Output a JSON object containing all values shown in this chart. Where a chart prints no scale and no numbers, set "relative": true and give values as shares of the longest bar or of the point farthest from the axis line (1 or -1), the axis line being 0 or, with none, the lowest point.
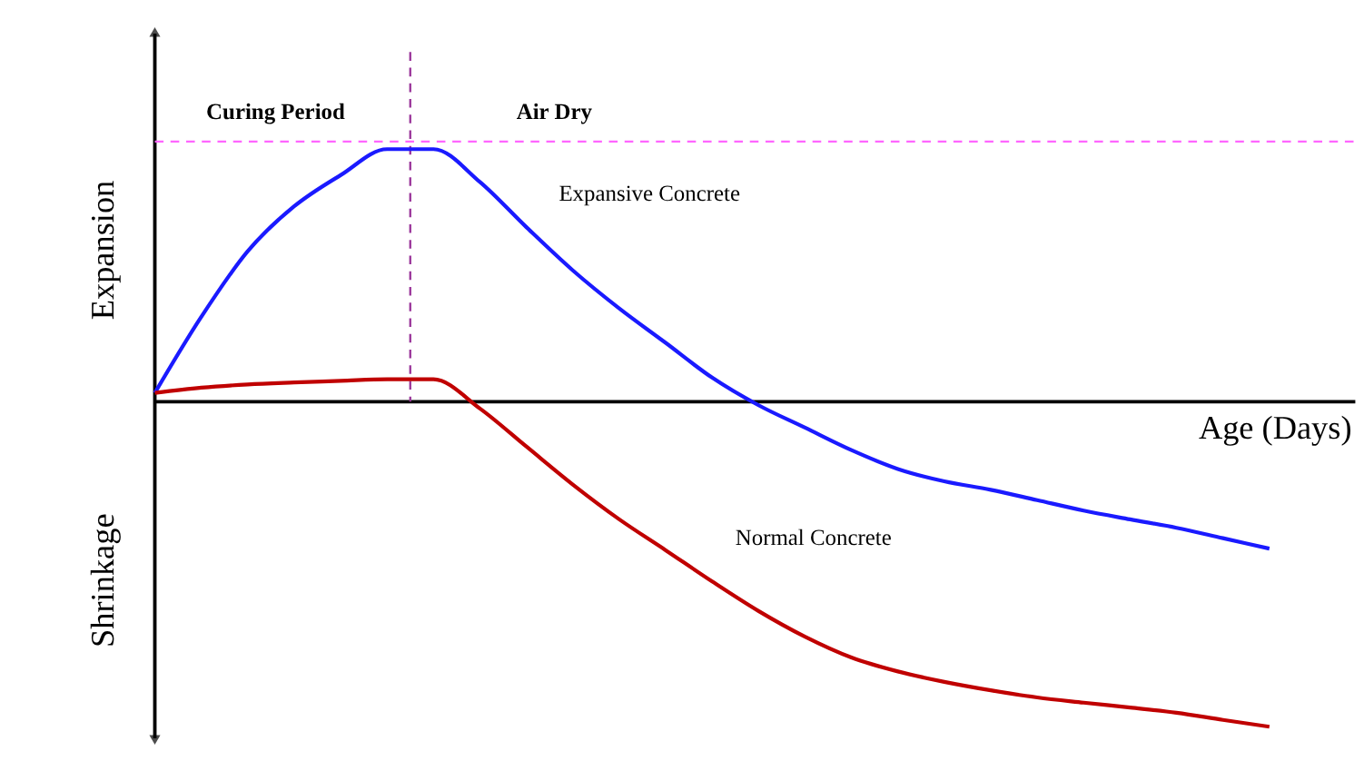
{
  "chart_data": {
    "type": "line",
    "relative": true,
    "xlabel": "Age (Days)",
    "ylabel": "Expansion",
    "annotations": [
      "Curing Period",
      "Air Dry",
      "Shrinkage"
    ],
    "categories": [
      null,
      null,
      null,
      null,
      null,
      null,
      null,
      null,
      null,
      null,
      null,
      null,
      null,
      null,
      null,
      null,
      null,
      null,
      null,
      null,
      null,
      null,
      null,
      null,
      null,
      null
    ],
    "series": [
      {
        "name": "Expansive Concrete",
        "color": "#1a1aff",
        "values": [
          0.027,
          0.261,
          0.463,
          0.601,
          0.697,
          0.777,
          0.777,
          0.676,
          0.537,
          0.404,
          0.287,
          0.181,
          0.074,
          -0.011,
          -0.08,
          -0.149,
          -0.207,
          -0.245,
          -0.271,
          -0.303,
          -0.335,
          -0.362,
          -0.388,
          -0.42,
          -0.452,
          null
        ]
      },
      {
        "name": "Normal Concrete",
        "color": "#c00000",
        "values": [
          0.027,
          0.043,
          0.053,
          0.059,
          0.064,
          0.069,
          0.069,
          -0.021,
          -0.138,
          -0.255,
          -0.362,
          -0.457,
          -0.553,
          -0.644,
          -0.723,
          -0.787,
          -0.83,
          -0.862,
          -0.888,
          -0.91,
          -0.926,
          -0.941,
          -0.957,
          -0.979,
          -1,
          null
        ]
      }
    ],
    "marker": "none",
    "line_style": "solid"
  }
}
